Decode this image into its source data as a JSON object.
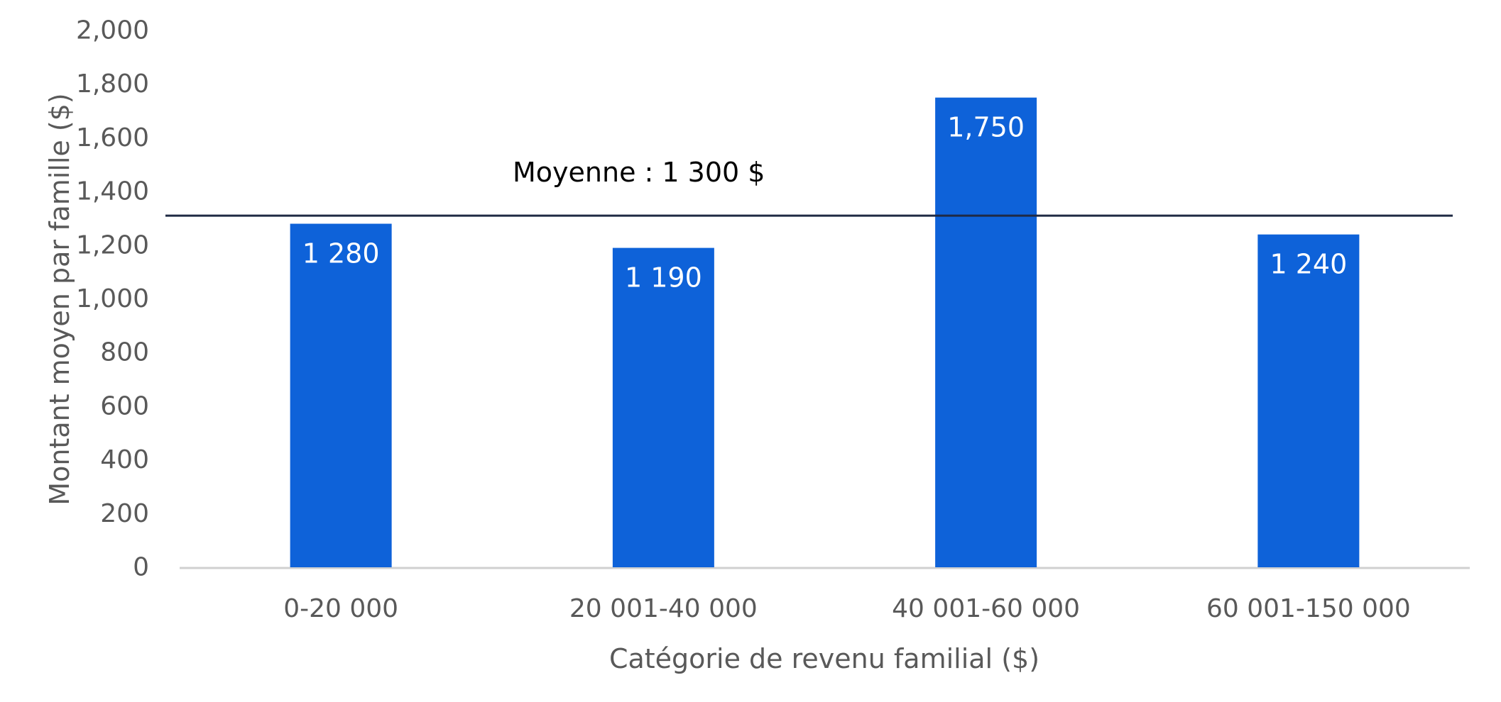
{
  "chart_data": {
    "type": "bar",
    "categories": [
      "0-20 000",
      "20 001-40 000",
      "40 001-60 000",
      "60 001-150 000"
    ],
    "values": [
      1280,
      1190,
      1750,
      1240
    ],
    "data_labels": [
      "1 280",
      "1 190",
      "1,750",
      "1 240"
    ],
    "xlabel": "Catégorie de revenu familial ($)",
    "ylabel": "Montant moyen par famille ($)",
    "ylim": [
      0,
      2000
    ],
    "yticks": [
      0,
      200,
      400,
      600,
      800,
      1000,
      1200,
      1400,
      1600,
      1800,
      2000
    ],
    "ytick_labels": [
      "0",
      "200",
      "400",
      "600",
      "800",
      "1,000",
      "1,200",
      "1,400",
      "1,600",
      "1,800",
      "2,000"
    ],
    "reference_line": {
      "value": 1310,
      "label": "Moyenne : 1 300 $",
      "color": "#1f2a44"
    },
    "bar_color": "#0e62d9",
    "grid": false,
    "legend": "none"
  }
}
